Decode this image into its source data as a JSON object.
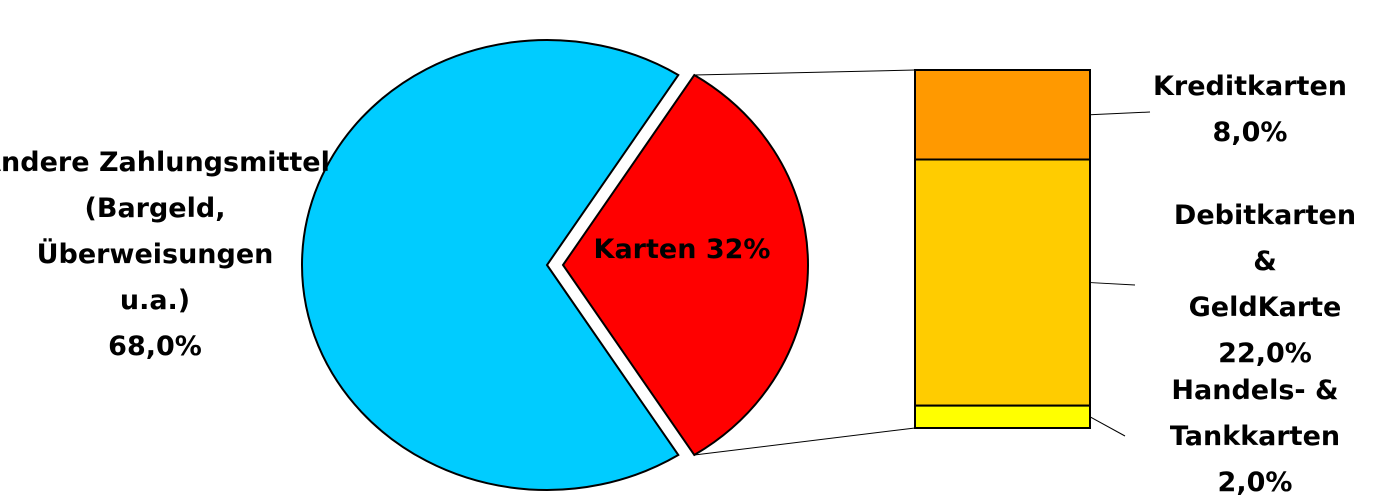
{
  "chart_data": {
    "type": "bar-of-pie",
    "pie": {
      "categories": [
        "Andere Zahlungsmittel\n(Bargeld,\nÜberweisungen\nu.a.)",
        "Karten"
      ],
      "values": [
        68,
        32
      ],
      "value_labels": [
        "68,0%",
        "32%"
      ],
      "colors": [
        "#00ccff",
        "#ff0000"
      ]
    },
    "bar": {
      "categories": [
        "Kreditkarten",
        "Debitkarten &\nGeldKarte",
        "Handels- &\nTankkarten"
      ],
      "values": [
        8,
        22,
        2
      ],
      "value_labels": [
        "8,0%",
        "22,0%",
        "2,0%"
      ],
      "colors": [
        "#ff9900",
        "#ffcc00",
        "#ffff00"
      ]
    }
  }
}
